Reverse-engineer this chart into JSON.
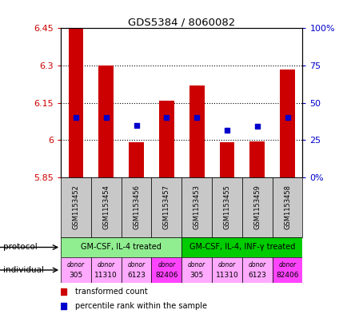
{
  "title": "GDS5384 / 8060082",
  "samples": [
    "GSM1153452",
    "GSM1153454",
    "GSM1153456",
    "GSM1153457",
    "GSM1153453",
    "GSM1153455",
    "GSM1153459",
    "GSM1153458"
  ],
  "bar_values": [
    6.45,
    6.3,
    5.99,
    6.16,
    6.22,
    5.99,
    5.995,
    6.285
  ],
  "bar_base": 5.85,
  "blue_dot_values": [
    6.09,
    6.09,
    6.06,
    6.09,
    6.09,
    6.04,
    6.055,
    6.09
  ],
  "ylim": [
    5.85,
    6.45
  ],
  "yticks_left": [
    5.85,
    6.0,
    6.15,
    6.3,
    6.45
  ],
  "ytick_labels_left": [
    "5.85",
    "6",
    "6.15",
    "6.3",
    "6.45"
  ],
  "yticks_right_vals": [
    0,
    25,
    50,
    75,
    100
  ],
  "ytick_labels_right": [
    "0%",
    "25",
    "50",
    "75",
    "100%"
  ],
  "bar_color": "#cc0000",
  "dot_color": "#0000cc",
  "protocol_groups": [
    {
      "label": "GM-CSF, IL-4 treated",
      "indices": [
        0,
        1,
        2,
        3
      ],
      "color": "#90ee90"
    },
    {
      "label": "GM-CSF, IL-4, INF-γ treated",
      "indices": [
        4,
        5,
        6,
        7
      ],
      "color": "#00cc00"
    }
  ],
  "individual_labels": [
    "donor\n305",
    "donor\n11310",
    "donor\n6123",
    "donor\n82406",
    "donor\n305",
    "donor\n11310",
    "donor\n6123",
    "donor\n82406"
  ],
  "individual_colors": [
    "#ffaaff",
    "#ffaaff",
    "#ffaaff",
    "#ff44ff",
    "#ffaaff",
    "#ffaaff",
    "#ffaaff",
    "#ff44ff"
  ],
  "bg_color": "#ffffff",
  "axis_left_color": "#cc0000",
  "axis_right_color": "#0000cc",
  "sample_bg_color": "#c8c8c8",
  "grid_yticks": [
    6.0,
    6.15,
    6.3
  ]
}
